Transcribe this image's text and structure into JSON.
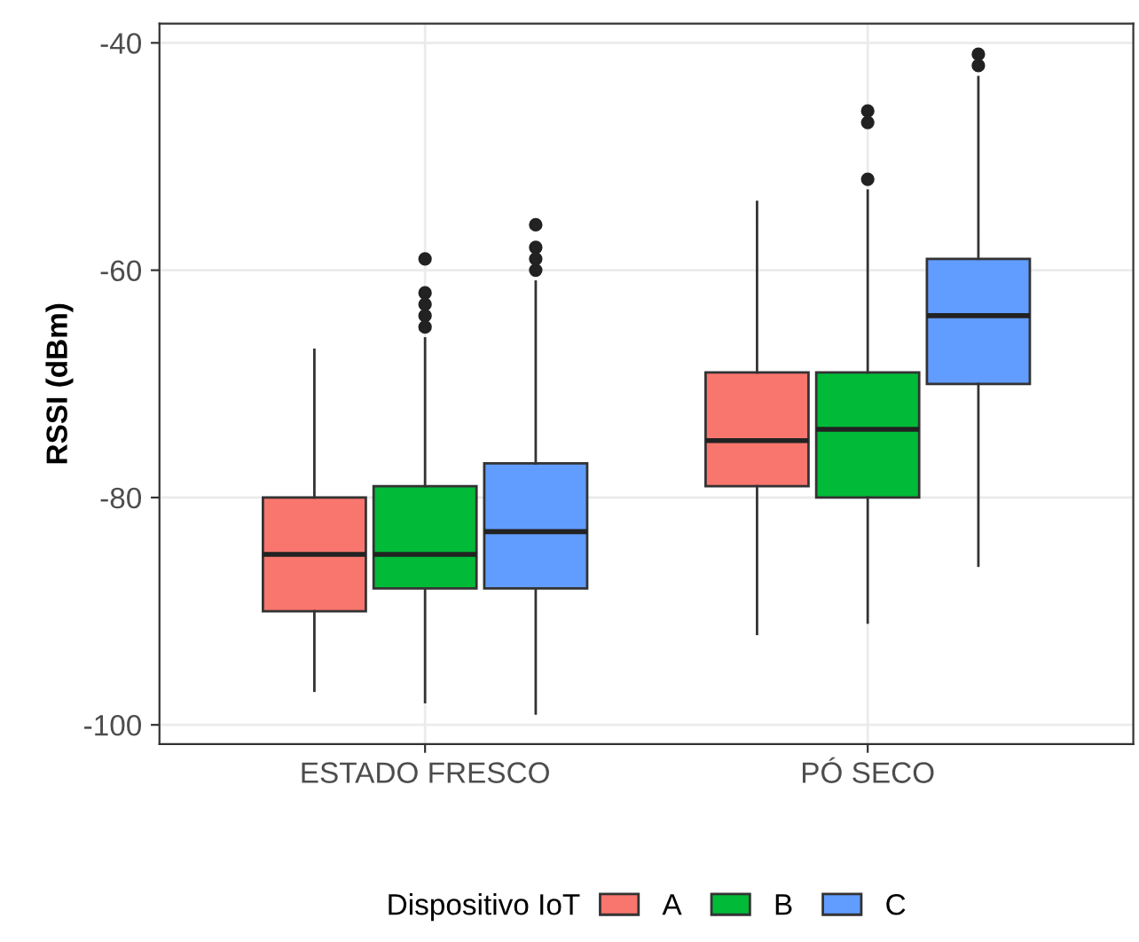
{
  "chart_data": {
    "type": "box",
    "ylabel": "RSSI (dBm)",
    "legend_title": "Dispositivo IoT",
    "categories": [
      "ESTADO FRESCO",
      "PÓ SECO"
    ],
    "ylim": [
      -101.7,
      -38.3
    ],
    "yticks": [
      -100,
      -80,
      -60,
      -40
    ],
    "grid": true,
    "legend": "bottom",
    "series": [
      {
        "name": "A",
        "color": "#f8766d",
        "boxes": [
          {
            "low": -97,
            "q1": -90,
            "median": -85,
            "q3": -80,
            "high": -67
          },
          {
            "low": -92,
            "q1": -79,
            "median": -75,
            "q3": -69,
            "high": -54
          }
        ]
      },
      {
        "name": "B",
        "color": "#00ba38",
        "boxes": [
          {
            "low": -98,
            "q1": -88,
            "median": -85,
            "q3": -79,
            "high": -66,
            "outliers": [
              -59,
              -62,
              -63,
              -64,
              -65
            ]
          },
          {
            "low": -91,
            "q1": -80,
            "median": -74,
            "q3": -69,
            "high": -53,
            "outliers": [
              -52,
              -46,
              -47
            ]
          }
        ]
      },
      {
        "name": "C",
        "color": "#619cff",
        "boxes": [
          {
            "low": -99,
            "q1": -88,
            "median": -83,
            "q3": -77,
            "high": -61,
            "outliers": [
              -56,
              -58,
              -59,
              -60
            ]
          },
          {
            "low": -86,
            "q1": -70,
            "median": -64,
            "q3": -59,
            "high": -43,
            "outliers": [
              -41,
              -42
            ]
          }
        ]
      }
    ]
  }
}
